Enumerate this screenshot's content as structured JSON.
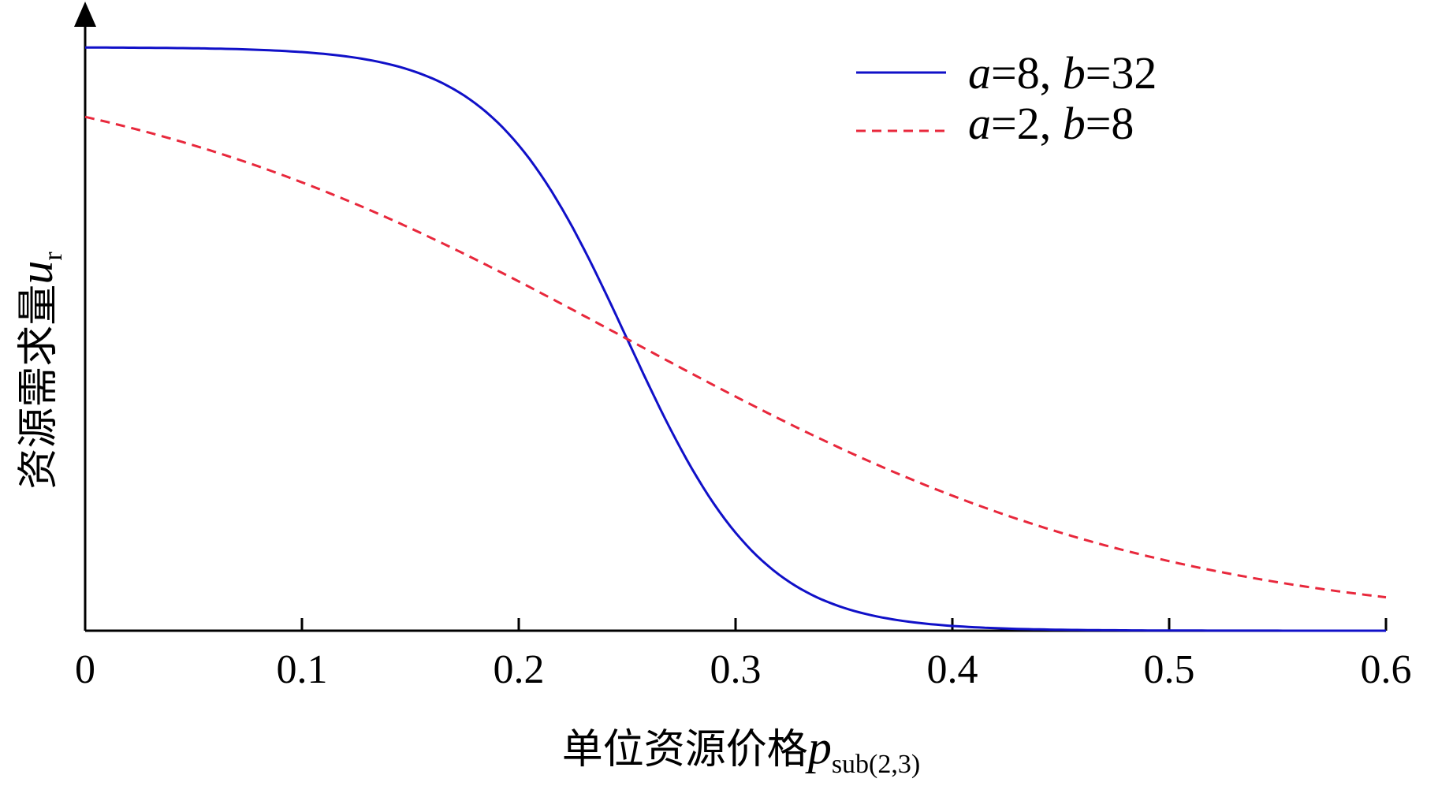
{
  "chart_data": {
    "type": "line",
    "xlabel": "单位资源价格",
    "xlabel_var": "p",
    "xlabel_sub": "sub(2,3)",
    "ylabel": "资源需求量",
    "ylabel_var": "u",
    "ylabel_sub": "r",
    "xlim": [
      0,
      0.6
    ],
    "ylim": [
      0,
      1
    ],
    "x_ticks": [
      "0",
      "0.1",
      "0.2",
      "0.3",
      "0.4",
      "0.5",
      "0.6"
    ],
    "y_ticks_shown": false,
    "grid": false,
    "legend_position": "top-right",
    "series": [
      {
        "name_parts": [
          "a",
          "=8, ",
          "b",
          "=32"
        ],
        "color": "#1010c8",
        "dash": "solid",
        "x": [
          0,
          0.05,
          0.1,
          0.15,
          0.18,
          0.2,
          0.22,
          0.24,
          0.25,
          0.26,
          0.28,
          0.3,
          0.32,
          0.35,
          0.4,
          0.45,
          0.5,
          0.55,
          0.6
        ],
        "y": [
          1.0,
          0.999,
          0.995,
          0.973,
          0.917,
          0.832,
          0.69,
          0.5,
          0.5,
          0.31,
          0.168,
          0.083,
          0.038,
          0.012,
          0.002,
          0.0003,
          0.0001,
          0.0,
          0.0
        ]
      },
      {
        "name_parts": [
          "a",
          "=2, ",
          "b",
          "=8"
        ],
        "color": "#e8283c",
        "dash": "dashed",
        "x": [
          0,
          0.05,
          0.1,
          0.15,
          0.2,
          0.25,
          0.3,
          0.35,
          0.4,
          0.45,
          0.5,
          0.55,
          0.6
        ],
        "y": [
          0.881,
          0.832,
          0.769,
          0.69,
          0.599,
          0.5,
          0.401,
          0.31,
          0.231,
          0.168,
          0.119,
          0.083,
          0.057
        ]
      }
    ]
  }
}
